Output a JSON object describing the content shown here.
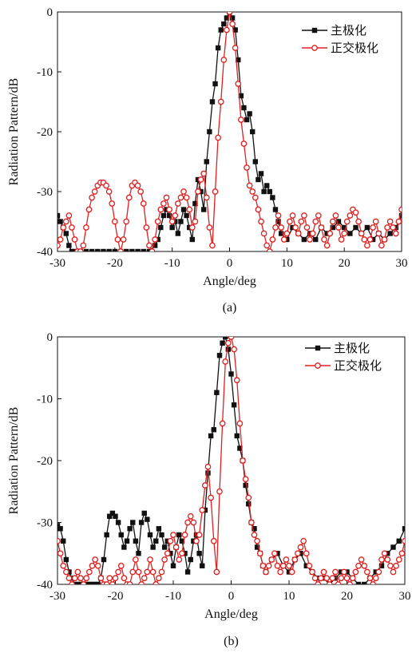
{
  "chart_data": [
    {
      "type": "line",
      "caption": "(a)",
      "xlabel": "Angle/deg",
      "ylabel": "Radiation Pattern/dB",
      "xlim": [
        -30,
        30
      ],
      "ylim": [
        -40,
        0
      ],
      "xticks": [
        -30,
        -20,
        -10,
        0,
        10,
        20,
        30
      ],
      "yticks": [
        0,
        -10,
        -20,
        -30,
        -40
      ],
      "grid": false,
      "legend_position": "top-right",
      "series": [
        {
          "name": "主极化",
          "color": "#111111",
          "marker": "square-filled",
          "x": [
            -30,
            -29.5,
            -29,
            -28.5,
            -28,
            -27.5,
            -27,
            -26,
            -25,
            -24,
            -23,
            -22,
            -21,
            -20,
            -19,
            -18,
            -17,
            -16,
            -15,
            -14,
            -13,
            -12.5,
            -12,
            -11.5,
            -11,
            -10.5,
            -10,
            -9.5,
            -9,
            -8.5,
            -8,
            -7.5,
            -7,
            -6.5,
            -6,
            -5.5,
            -5,
            -4.5,
            -4,
            -3.5,
            -3,
            -2.5,
            -2,
            -1.5,
            -1,
            -0.5,
            0,
            0.5,
            1,
            1.5,
            2,
            2.5,
            3,
            3.5,
            4,
            4.5,
            5,
            5.5,
            6,
            6.5,
            7,
            7.5,
            8,
            8.5,
            9,
            10,
            11,
            12,
            13,
            14,
            15,
            16,
            17,
            18,
            19,
            20,
            21,
            22,
            23,
            24,
            25,
            26,
            27,
            28,
            29,
            30
          ],
          "y": [
            -34,
            -35,
            -36,
            -37,
            -39,
            -40,
            -40,
            -40,
            -40,
            -40,
            -40,
            -40,
            -40,
            -40,
            -40,
            -40,
            -40,
            -40,
            -40,
            -40,
            -39,
            -38,
            -36,
            -34,
            -33,
            -34,
            -36,
            -35,
            -37,
            -35,
            -33,
            -34,
            -36,
            -38,
            -32,
            -28,
            -30,
            -33,
            -25,
            -20,
            -15,
            -12,
            -6,
            -3,
            -2,
            -1,
            0,
            -1,
            -3,
            -8,
            -14,
            -16,
            -18,
            -17,
            -20,
            -25,
            -28,
            -27,
            -30,
            -29,
            -30,
            -31,
            -33,
            -35,
            -37,
            -38,
            -36,
            -37,
            -38,
            -37,
            -38,
            -36,
            -37,
            -36,
            -35,
            -36,
            -37,
            -36,
            -37,
            -36,
            -38,
            -37,
            -38,
            -37,
            -36,
            -34
          ]
        },
        {
          "name": "正交极化",
          "color": "#e02020",
          "marker": "circle-open",
          "x": [
            -30,
            -29.5,
            -29,
            -28.5,
            -28,
            -27.5,
            -27,
            -26.5,
            -26,
            -25.5,
            -25,
            -24.5,
            -24,
            -23.5,
            -23,
            -22.5,
            -22,
            -21.5,
            -21,
            -20.5,
            -20,
            -19.5,
            -19,
            -18.5,
            -18,
            -17.5,
            -17,
            -16.5,
            -16,
            -15.5,
            -15,
            -14.5,
            -14,
            -13.5,
            -13,
            -12.5,
            -12,
            -11.5,
            -11,
            -10.5,
            -10,
            -9.5,
            -9,
            -8.5,
            -8,
            -7.5,
            -7,
            -6.5,
            -6,
            -5.5,
            -5,
            -4.5,
            -4,
            -3.5,
            -3,
            -2.5,
            -2,
            -1.5,
            -1,
            -0.5,
            0,
            0.5,
            1,
            1.5,
            2,
            2.5,
            3,
            3.5,
            4,
            4.5,
            5,
            5.5,
            6,
            6.5,
            7,
            7.5,
            8,
            8.5,
            9,
            9.5,
            10,
            10.5,
            11,
            11.5,
            12,
            12.5,
            13,
            13.5,
            14,
            14.5,
            15,
            15.5,
            16,
            16.5,
            17,
            17.5,
            18,
            18.5,
            19,
            19.5,
            20,
            20.5,
            21,
            21.5,
            22,
            22.5,
            23,
            23.5,
            24,
            24.5,
            25,
            25.5,
            26,
            26.5,
            27,
            27.5,
            28,
            28.5,
            29,
            29.5,
            30
          ],
          "y": [
            -39,
            -38,
            -36,
            -35,
            -34,
            -36,
            -38,
            -40,
            -40,
            -39,
            -36,
            -33,
            -31,
            -30,
            -29,
            -28.5,
            -28.5,
            -29,
            -30,
            -32,
            -35,
            -38,
            -40,
            -38,
            -35,
            -31,
            -29,
            -28.5,
            -29,
            -30,
            -32,
            -36,
            -39,
            -40,
            -38,
            -35,
            -33,
            -32,
            -31,
            -33,
            -35,
            -34,
            -32,
            -31,
            -30,
            -31,
            -33,
            -36,
            -35,
            -30,
            -28,
            -27,
            -31,
            -36,
            -39,
            -30,
            -21,
            -15,
            -8,
            -3,
            0,
            -2,
            -6,
            -12,
            -18,
            -22,
            -26,
            -29,
            -30,
            -31,
            -33,
            -35,
            -37,
            -39,
            -40,
            -38,
            -36,
            -34,
            -36,
            -38,
            -37,
            -35,
            -34,
            -36,
            -37,
            -35,
            -34,
            -36,
            -38,
            -37,
            -35,
            -34,
            -36,
            -38,
            -39,
            -37,
            -35,
            -34,
            -36,
            -38,
            -37,
            -35,
            -34,
            -33,
            -33.5,
            -35,
            -37,
            -38,
            -39,
            -38,
            -36,
            -35,
            -37,
            -39,
            -38,
            -36,
            -35,
            -36,
            -37,
            -35,
            -33
          ]
        }
      ]
    },
    {
      "type": "line",
      "caption": "(b)",
      "xlabel": "Angle/deg",
      "ylabel": "Radiation Pattern/dB",
      "xlim": [
        -30,
        30
      ],
      "ylim": [
        -40,
        0
      ],
      "xticks": [
        -30,
        -20,
        -10,
        0,
        10,
        20,
        30
      ],
      "yticks": [
        0,
        -10,
        -20,
        -30,
        -40
      ],
      "grid": false,
      "legend_position": "top-right",
      "series": [
        {
          "name": "主极化",
          "color": "#111111",
          "marker": "square-filled",
          "x": [
            -30,
            -29.5,
            -29,
            -28.5,
            -28,
            -27.5,
            -27,
            -26.5,
            -26,
            -25.5,
            -25,
            -24.5,
            -24,
            -23.5,
            -23,
            -22.5,
            -22,
            -21.5,
            -21,
            -20.5,
            -20,
            -19.5,
            -19,
            -18.5,
            -18,
            -17.5,
            -17,
            -16.5,
            -16,
            -15.5,
            -15,
            -14.5,
            -14,
            -13.5,
            -13,
            -12.5,
            -12,
            -11.5,
            -11,
            -10.5,
            -10,
            -9.5,
            -9,
            -8.5,
            -8,
            -7.5,
            -7,
            -6.5,
            -6,
            -5.5,
            -5,
            -4.5,
            -4,
            -3.5,
            -3,
            -2.5,
            -2,
            -1.5,
            -1,
            -0.5,
            0,
            0.5,
            1,
            1.5,
            2,
            2.5,
            3,
            3.5,
            4,
            4.5,
            5,
            5.5,
            6,
            7,
            8,
            9,
            10,
            11,
            12,
            13,
            14,
            15,
            16,
            17,
            18,
            19,
            20,
            21,
            22,
            23,
            24,
            25,
            26,
            27,
            28,
            29,
            30
          ],
          "y": [
            -30.5,
            -31,
            -33,
            -36,
            -38,
            -39,
            -40,
            -40,
            -40,
            -40,
            -40,
            -40,
            -40,
            -40,
            -40,
            -39,
            -36,
            -32,
            -29,
            -28.5,
            -29,
            -30,
            -32,
            -34,
            -33,
            -31,
            -30,
            -33,
            -35,
            -30,
            -28.5,
            -29.5,
            -32,
            -34,
            -33,
            -31,
            -32,
            -34,
            -33,
            -35,
            -37,
            -34,
            -32,
            -33,
            -35,
            -38,
            -36,
            -33,
            -32,
            -35,
            -37,
            -28,
            -22,
            -16,
            -15,
            -9,
            -3,
            -1,
            0,
            -2,
            -6,
            -11,
            -16,
            -18,
            -20,
            -24,
            -27,
            -30,
            -31,
            -34,
            -35,
            -37,
            -38,
            -36,
            -35,
            -37,
            -38,
            -36,
            -35,
            -37,
            -38,
            -39,
            -39,
            -40,
            -39,
            -38,
            -38,
            -39,
            -40,
            -40,
            -39,
            -38,
            -37,
            -35,
            -34,
            -33,
            -31
          ]
        },
        {
          "name": "正交极化",
          "color": "#e02020",
          "marker": "circle-open",
          "x": [
            -30,
            -29.5,
            -29,
            -28.5,
            -28,
            -27.5,
            -27,
            -26.5,
            -26,
            -25.5,
            -25,
            -24.5,
            -24,
            -23.5,
            -23,
            -22.5,
            -22,
            -21.5,
            -21,
            -20.5,
            -20,
            -19.5,
            -19,
            -18.5,
            -18,
            -17.5,
            -17,
            -16.5,
            -16,
            -15.5,
            -15,
            -14.5,
            -14,
            -13.5,
            -13,
            -12.5,
            -12,
            -11.5,
            -11,
            -10.5,
            -10,
            -9.5,
            -9,
            -8.5,
            -8,
            -7.5,
            -7,
            -6.5,
            -6,
            -5.5,
            -5,
            -4.5,
            -4,
            -3.5,
            -3,
            -2.5,
            -2,
            -1.5,
            -1,
            -0.5,
            0,
            0.5,
            1,
            1.5,
            2,
            2.5,
            3,
            3.5,
            4,
            4.5,
            5,
            5.5,
            6,
            6.5,
            7,
            7.5,
            8,
            8.5,
            9,
            9.5,
            10,
            10.5,
            11,
            11.5,
            12,
            12.5,
            13,
            13.5,
            14,
            14.5,
            15,
            15.5,
            16,
            16.5,
            17,
            17.5,
            18,
            18.5,
            19,
            19.5,
            20,
            20.5,
            21,
            21.5,
            22,
            22.5,
            23,
            23.5,
            24,
            24.5,
            25,
            25.5,
            26,
            26.5,
            27,
            27.5,
            28,
            28.5,
            29,
            29.5,
            30
          ],
          "y": [
            -33,
            -35,
            -37,
            -38,
            -39,
            -40,
            -39,
            -38,
            -39,
            -40,
            -39,
            -38,
            -37,
            -36,
            -37,
            -39,
            -40,
            -40,
            -39,
            -40,
            -39,
            -38,
            -37,
            -39,
            -40,
            -40,
            -38,
            -36,
            -38,
            -40,
            -39,
            -38,
            -36,
            -38,
            -40,
            -39,
            -38,
            -36,
            -35,
            -33,
            -32,
            -34,
            -36,
            -35,
            -32,
            -30,
            -29,
            -30,
            -33,
            -32,
            -28,
            -24,
            -21,
            -26,
            -33,
            -38,
            -25,
            -14,
            -4,
            -1,
            0,
            -2,
            -7,
            -14,
            -20,
            -23,
            -26,
            -30,
            -32,
            -33,
            -35,
            -37,
            -38,
            -37,
            -36,
            -35,
            -37,
            -38,
            -37,
            -36,
            -37,
            -38,
            -36,
            -35,
            -34,
            -33,
            -35,
            -37,
            -38,
            -39,
            -40,
            -39,
            -38,
            -39,
            -40,
            -39,
            -38,
            -40,
            -39,
            -38,
            -39,
            -40,
            -39,
            -38,
            -37,
            -36,
            -37,
            -38,
            -39,
            -40,
            -39,
            -38,
            -36,
            -35,
            -36,
            -37,
            -38,
            -37,
            -36,
            -35,
            -33
          ]
        }
      ]
    }
  ]
}
